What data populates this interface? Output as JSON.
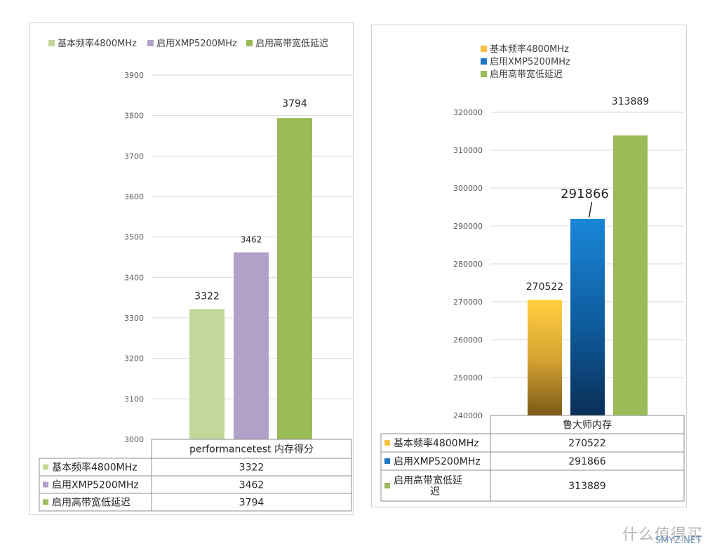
{
  "chart_data": [
    {
      "type": "bar",
      "title": "",
      "categories": [
        "performancetest 内存得分"
      ],
      "series": [
        {
          "name": "基本频率4800MHz",
          "values": [
            3322
          ],
          "color": "#c4d79b"
        },
        {
          "name": "启用XMP5200MHz",
          "values": [
            3462
          ],
          "color": "#b1a0c7"
        },
        {
          "name": "启用高带宽低延迟",
          "values": [
            3794
          ],
          "color": "#9bbb59"
        }
      ],
      "data_labels": [
        "3322",
        "3462",
        "3794"
      ],
      "y_ticks": [
        "3000",
        "3100",
        "3200",
        "3300",
        "3400",
        "3500",
        "3600",
        "3700",
        "3800",
        "3900"
      ],
      "ylim": [
        3000,
        3900
      ],
      "grid": true,
      "legend_position": "top",
      "data_table": true
    },
    {
      "type": "bar",
      "title": "",
      "categories": [
        "鲁大师内存"
      ],
      "series": [
        {
          "name": "基本频率4800MHz",
          "values": [
            270522
          ],
          "color": "#f5c242"
        },
        {
          "name": "启用XMP5200MHz",
          "values": [
            291866
          ],
          "color": "#1f77c4"
        },
        {
          "name": "启用高带宽低延迟",
          "values": [
            313889
          ],
          "color": "#9bbb59"
        }
      ],
      "data_labels": [
        "270522",
        "291866",
        "313889"
      ],
      "y_ticks": [
        "240000",
        "250000",
        "260000",
        "270000",
        "280000",
        "290000",
        "300000",
        "310000",
        "320000"
      ],
      "ylim": [
        240000,
        320000
      ],
      "grid": true,
      "legend_position": "top",
      "data_table": true
    }
  ],
  "watermark": "什么值得买",
  "watermark_small": "SMYZ.NET"
}
